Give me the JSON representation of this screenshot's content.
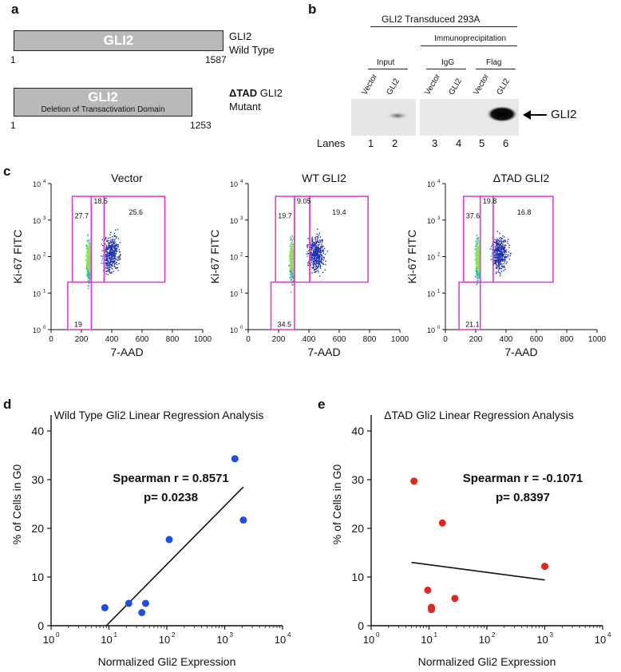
{
  "panels": {
    "a": "a",
    "b": "b",
    "c": "c",
    "d": "d",
    "e": "e"
  },
  "panel_a": {
    "wt_bar": "GLI2",
    "wt_name_line1": "GLI2",
    "wt_name_line2": "Wild Type",
    "wt_start": "1",
    "wt_end": "1587",
    "mut_bar": "GLI2",
    "mut_del": "Deletion of Transactivation Domain",
    "mut_name_bold": "ΔTAD",
    "mut_name_rest": " GLI2",
    "mut_name_line2": "Mutant",
    "mut_start": "1",
    "mut_end": "1253"
  },
  "panel_b": {
    "header": "GLI2 Transduced 293A",
    "ip": "Immunoprecipitation",
    "input": "Input",
    "igg": "IgG",
    "flag": "Flag",
    "lane_labels": [
      "Vector",
      "GLI2",
      "Vector",
      "GLI2",
      "Vector",
      "GLI2"
    ],
    "lanes_title": "Lanes",
    "lane_numbers": [
      "1",
      "2",
      "3",
      "4",
      "5",
      "6"
    ],
    "arrow_label": "GLI2"
  },
  "panel_c": {
    "plots": [
      {
        "title": "Vector",
        "gates": [
          "27.7",
          "18.5",
          "25.6",
          "19"
        ]
      },
      {
        "title": "WT GLI2",
        "gates": [
          "19.7",
          "9.05",
          "19.4",
          "34.5"
        ]
      },
      {
        "title": "ΔTAD GLI2",
        "gates": [
          "37.6",
          "19.8",
          "16.8",
          "21.1"
        ]
      }
    ],
    "ylabel": "Ki-67 FITC",
    "xlabel": "7-AAD",
    "xticks": [
      "0",
      "200",
      "400",
      "600",
      "800",
      "1000"
    ],
    "yticks": [
      "10",
      "10",
      "10",
      "10",
      "10"
    ],
    "yexp": [
      "0",
      "1",
      "2",
      "3",
      "4"
    ]
  },
  "chart_data": [
    {
      "type": "scatter",
      "title": "Wild Type Gli2 Linear Regression Analysis",
      "xlabel": "Normalized Gli2 Expression",
      "ylabel": "% of Cells in G0",
      "x_scale": "log",
      "xlim": [
        1,
        10000
      ],
      "ylim": [
        0,
        40
      ],
      "x_ticks": [
        "10",
        "10",
        "10",
        "10",
        "10"
      ],
      "x_tick_exp": [
        "0",
        "1",
        "2",
        "3",
        "4"
      ],
      "y_ticks": [
        "0",
        "10",
        "20",
        "30",
        "40"
      ],
      "annotation_1": "Spearman r = 0.8571",
      "annotation_2": "p= 0.0238",
      "color": "#1f4fe0",
      "x": [
        8.5,
        22,
        37,
        43,
        110,
        1500,
        2100
      ],
      "y": [
        3.7,
        4.6,
        2.7,
        4.6,
        17.7,
        34.3,
        21.7
      ],
      "fit": {
        "x": [
          9,
          2100
        ],
        "y": [
          0,
          28.5
        ]
      }
    },
    {
      "type": "scatter",
      "title": "ΔTAD Gli2 Linear Regression Analysis",
      "xlabel": "Normalized Gli2 Expression",
      "ylabel": "% of Cells in G0",
      "x_scale": "log",
      "xlim": [
        1,
        10000
      ],
      "ylim": [
        0,
        40
      ],
      "x_ticks": [
        "10",
        "10",
        "10",
        "10",
        "10"
      ],
      "x_tick_exp": [
        "0",
        "1",
        "2",
        "3",
        "4"
      ],
      "y_ticks": [
        "0",
        "10",
        "20",
        "30",
        "40"
      ],
      "annotation_1": "Spearman r = -0.1071",
      "annotation_2": "p= 0.8397",
      "color": "#e0281f",
      "x": [
        5.5,
        9.5,
        11,
        11,
        17,
        28,
        1000
      ],
      "y": [
        29.7,
        7.3,
        3.3,
        3.8,
        21.1,
        5.6,
        12.2
      ],
      "fit": {
        "x": [
          5,
          1000
        ],
        "y": [
          13.0,
          9.4
        ]
      }
    }
  ]
}
